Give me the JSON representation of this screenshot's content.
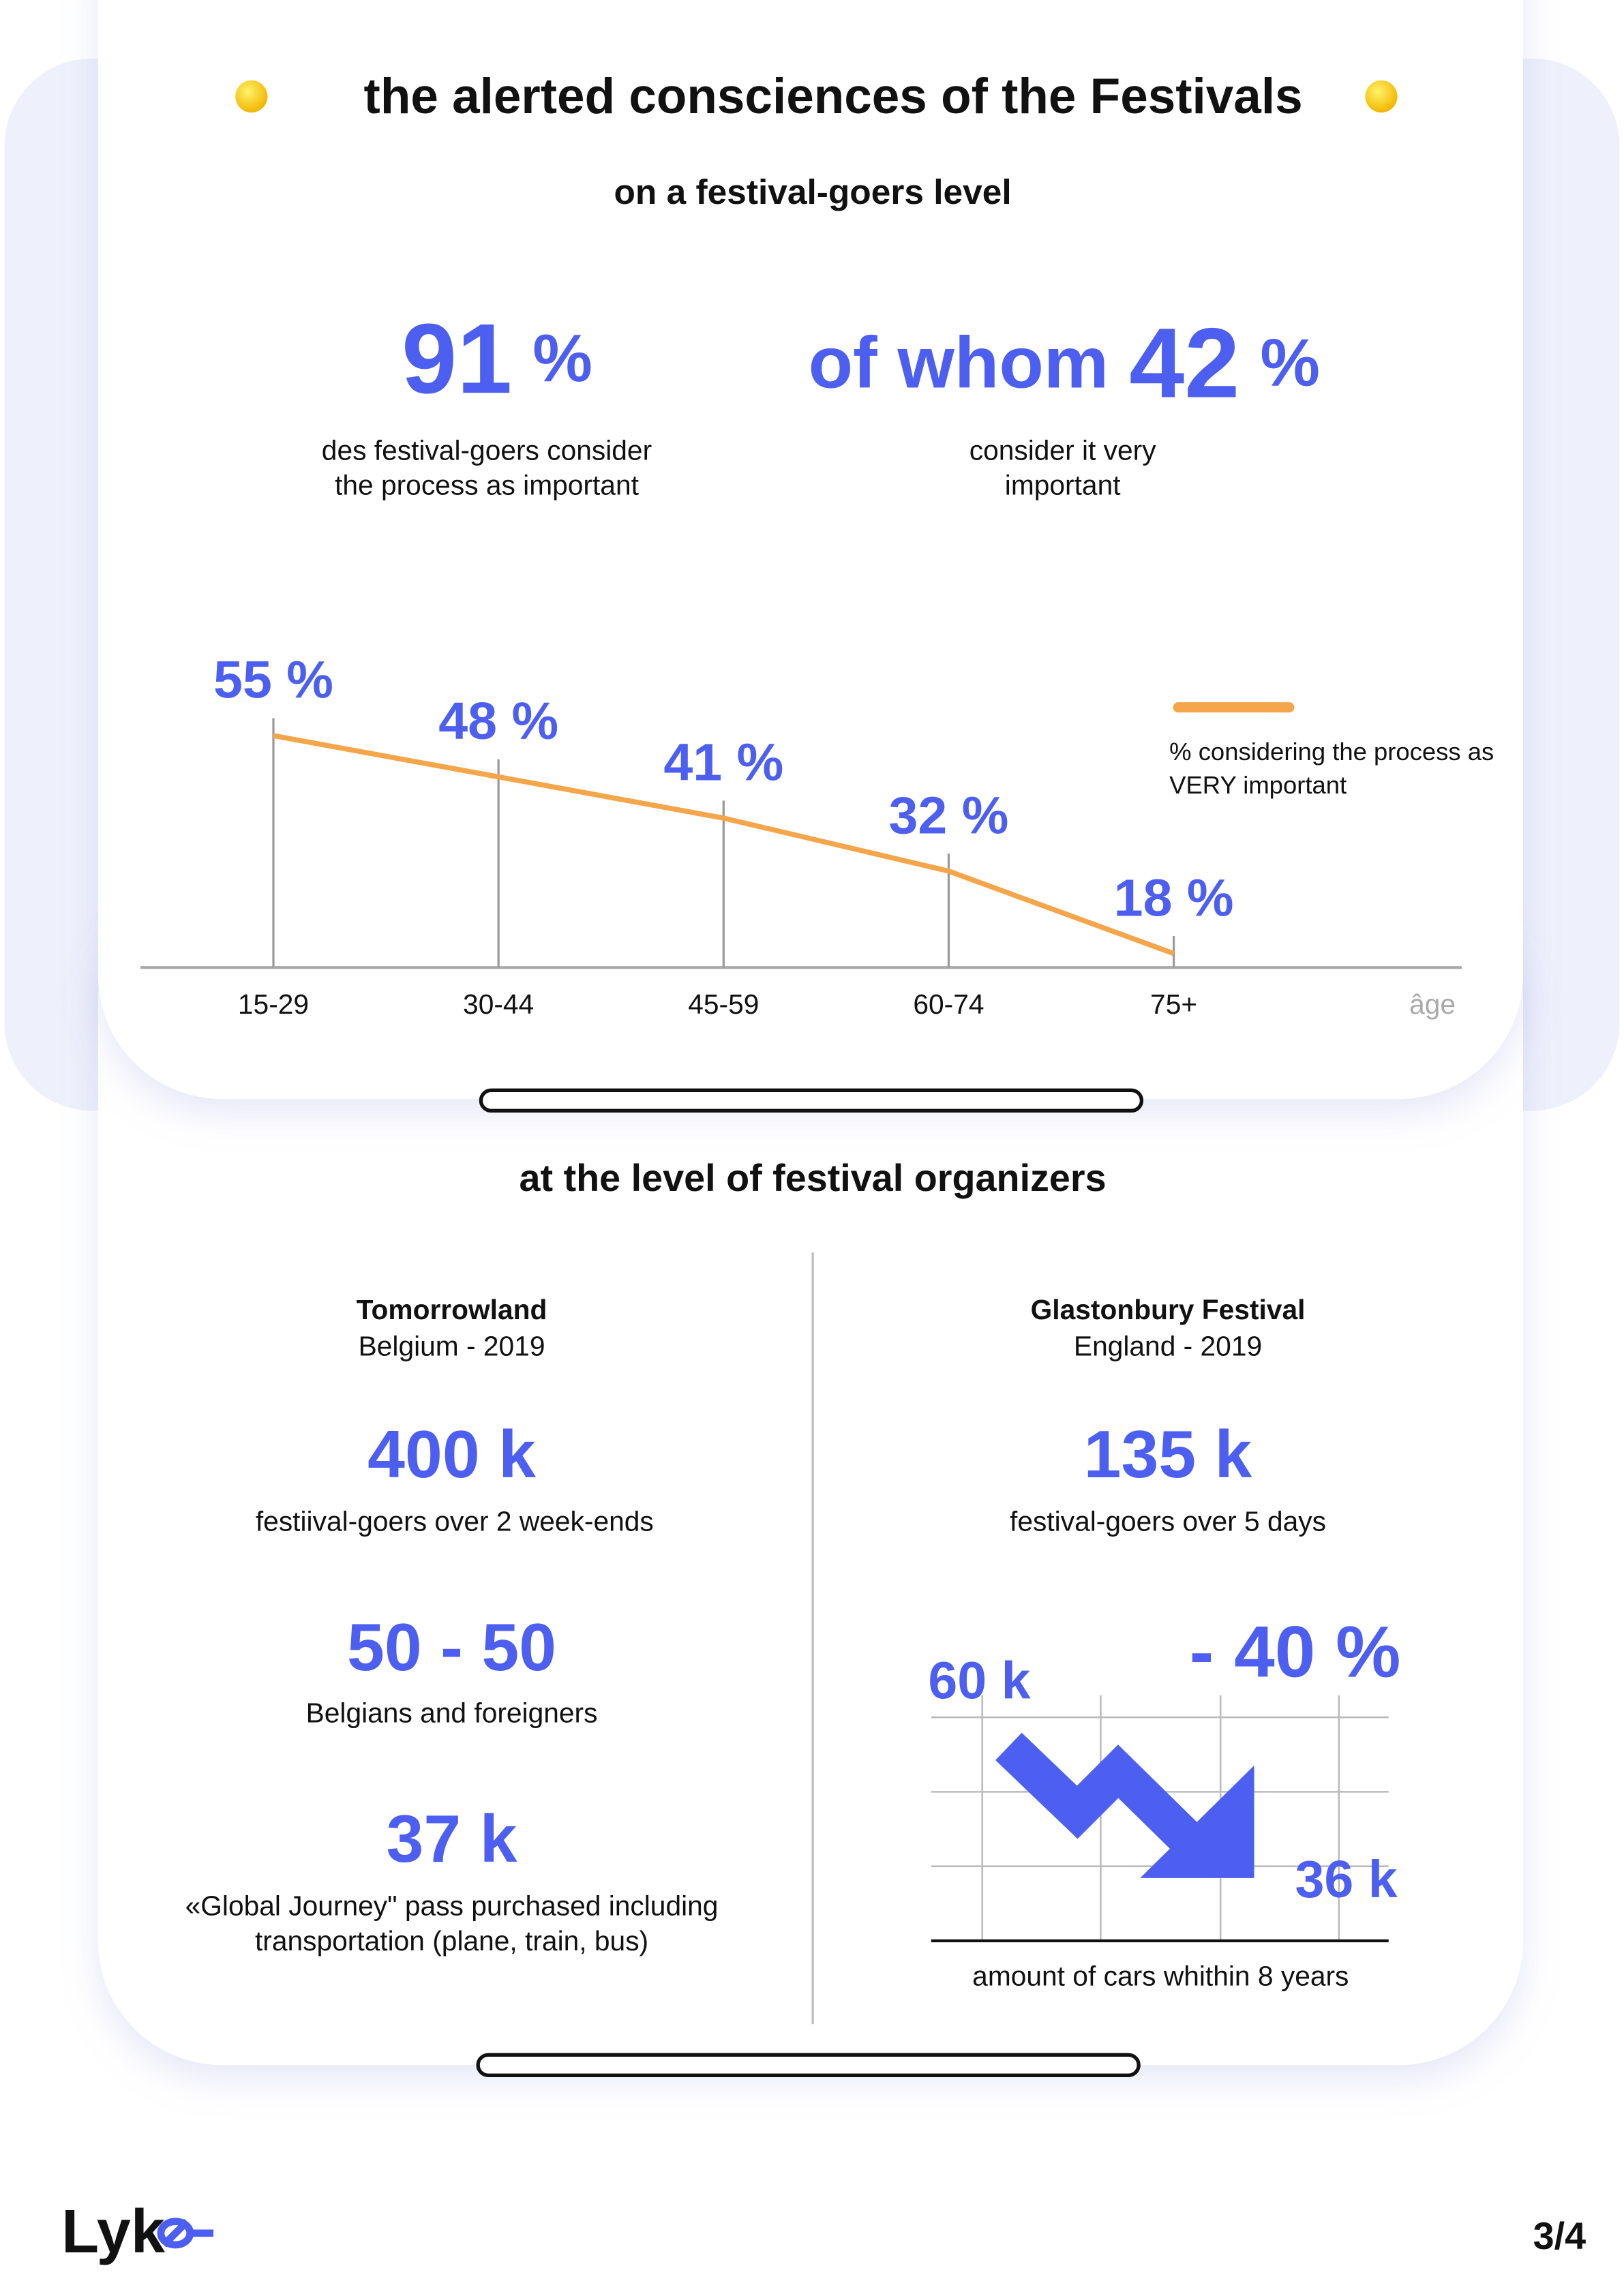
{
  "header": {
    "title": "the alerted consciences of the Festivals"
  },
  "goers": {
    "subtitle": "on a festival-goers level",
    "stat1": {
      "value": "91",
      "unit": "%",
      "caption": [
        "des festival-goers consider",
        "the process as important"
      ]
    },
    "stat2": {
      "prefix": "of whom",
      "value": "42",
      "unit": "%",
      "caption": [
        "consider it very",
        "important"
      ]
    }
  },
  "chart_data": {
    "type": "line",
    "categories": [
      "15-29",
      "30-44",
      "45-59",
      "60-74",
      "75+"
    ],
    "series": [
      {
        "name": "% considering the process as VERY important",
        "color": "#f5a54a",
        "values": [
          55,
          48,
          41,
          32,
          18
        ]
      }
    ],
    "value_labels": [
      "55 %",
      "48 %",
      "41 %",
      "32 %",
      "18 %"
    ],
    "x_label": "âge"
  },
  "organizers": {
    "title": "at the level of festival organizers",
    "festivals": [
      {
        "name": "Tomorrowland",
        "location": "Belgium - 2019",
        "stats": [
          {
            "value": "400 k",
            "caption": [
              "festiival-goers over 2 week-ends"
            ]
          },
          {
            "value": "50 - 50",
            "caption": [
              "Belgians and  foreigners"
            ]
          },
          {
            "value": "37 k",
            "caption": [
              "«Global Journey\" pass purchased including",
              "transportation (plane, train, bus)"
            ]
          }
        ]
      },
      {
        "name": "Glastonbury Festival",
        "location": "England - 2019",
        "stats": [
          {
            "value": "135 k",
            "caption": [
              "festival-goers over 5 days"
            ]
          }
        ],
        "cars": {
          "start": "60 k",
          "change": "- 40 %",
          "end": "36 k",
          "caption": "amount of cars whithin 8 years"
        }
      }
    ]
  },
  "footer": {
    "logo": "Lyk",
    "page": "3/4"
  }
}
